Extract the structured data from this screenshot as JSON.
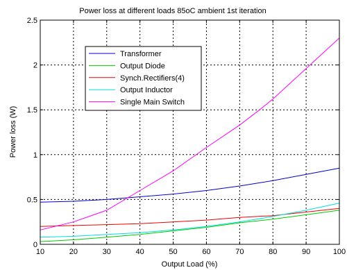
{
  "chart_data": {
    "type": "line",
    "title": "Power loss at different loads 85oC ambient 1st iteration",
    "xlabel": "Output Load (%)",
    "ylabel": "Power loss (W)",
    "xlim": [
      10,
      100
    ],
    "ylim": [
      0,
      2.5
    ],
    "xticks": [
      10,
      20,
      30,
      40,
      50,
      60,
      70,
      80,
      90,
      100
    ],
    "yticks": [
      0,
      0.5,
      1,
      1.5,
      2,
      2.5
    ],
    "ytick_labels": [
      "0",
      "0.5",
      "1",
      "1.5",
      "2",
      "2.5"
    ],
    "grid": true,
    "legend_position": "top-left",
    "series": [
      {
        "name": "Transformer",
        "color": "#0000cc",
        "x": [
          10,
          20,
          30,
          40,
          50,
          60,
          70,
          75,
          80,
          90,
          100
        ],
        "y": [
          0.47,
          0.48,
          0.5,
          0.53,
          0.56,
          0.6,
          0.65,
          0.68,
          0.71,
          0.78,
          0.85
        ]
      },
      {
        "name": "Output Diode",
        "color": "#00cc00",
        "x": [
          10,
          20,
          30,
          40,
          50,
          60,
          70,
          80,
          90,
          100
        ],
        "y": [
          0.03,
          0.05,
          0.08,
          0.11,
          0.15,
          0.19,
          0.24,
          0.28,
          0.33,
          0.38
        ]
      },
      {
        "name": "Synch.Rectifiers(4)",
        "color": "#ee0000",
        "x": [
          10,
          20,
          30,
          40,
          50,
          60,
          70,
          80,
          90,
          100
        ],
        "y": [
          0.2,
          0.21,
          0.22,
          0.23,
          0.25,
          0.27,
          0.3,
          0.32,
          0.36,
          0.4
        ]
      },
      {
        "name": "Output Inductor",
        "color": "#00dddd",
        "x": [
          10,
          20,
          30,
          40,
          50,
          60,
          70,
          80,
          90,
          100
        ],
        "y": [
          0.08,
          0.09,
          0.11,
          0.13,
          0.16,
          0.2,
          0.25,
          0.31,
          0.38,
          0.46
        ]
      },
      {
        "name": "Single Main Switch",
        "color": "#ff00ff",
        "x": [
          10,
          20,
          30,
          40,
          50,
          60,
          70,
          76,
          80,
          90,
          100
        ],
        "y": [
          0.16,
          0.25,
          0.38,
          0.6,
          0.82,
          1.08,
          1.33,
          1.5,
          1.62,
          1.96,
          2.3
        ]
      }
    ]
  }
}
